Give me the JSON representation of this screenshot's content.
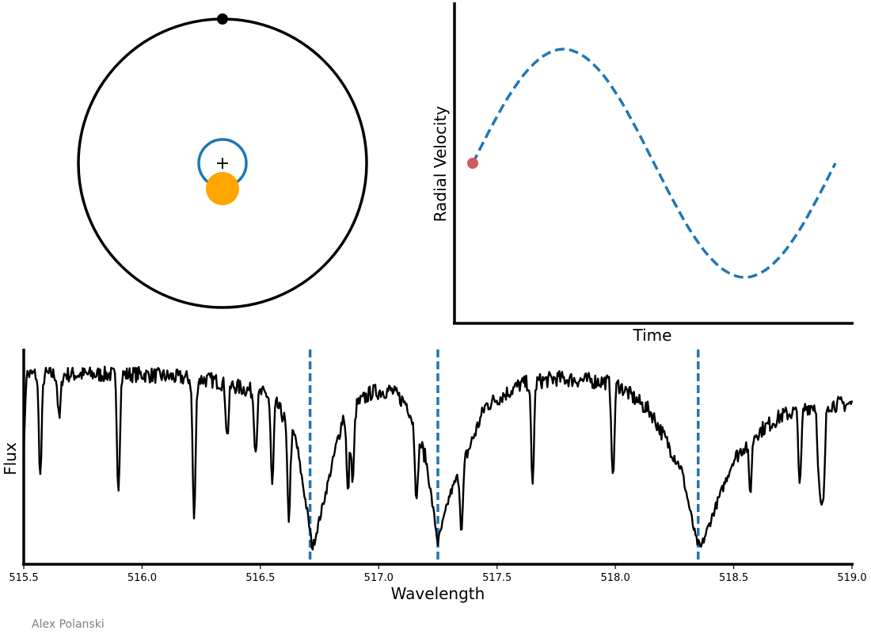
{
  "colors": {
    "orbit": "#000000",
    "star_orbit": "#1f77b4",
    "star": "#ffa500",
    "rv_curve": "#1f77b4",
    "rv_marker": "#cd5c5c",
    "spectrum": "#000000",
    "line_markers": "#1f77b4"
  },
  "credit": "Alex Polanski",
  "chart_data": [
    {
      "type": "diagram",
      "panel": "orbit",
      "elements": [
        "planet-orbit",
        "planet",
        "star-orbit",
        "barycenter",
        "star"
      ]
    },
    {
      "type": "line",
      "title": "",
      "xlabel": "Time",
      "ylabel": "Radial Velocity",
      "xticks": false,
      "yticks": false,
      "x": [
        0.0,
        0.05,
        0.1,
        0.15,
        0.2,
        0.25,
        0.3,
        0.35,
        0.4,
        0.45,
        0.5,
        0.55,
        0.6,
        0.65,
        0.7,
        0.75,
        0.8,
        0.85,
        0.9,
        0.95,
        1.0
      ],
      "series": [
        {
          "values": [
            0.0,
            0.31,
            0.59,
            0.81,
            0.95,
            1.0,
            0.95,
            0.81,
            0.59,
            0.31,
            0.0,
            -0.31,
            -0.59,
            -0.81,
            -0.95,
            -1.0,
            -0.95,
            -0.81,
            -0.59,
            -0.31,
            0.0
          ]
        }
      ],
      "current_point": {
        "x": 0.0,
        "y": 0.0
      }
    },
    {
      "type": "line",
      "title": "",
      "xlabel": "Wavelength",
      "ylabel": "Flux",
      "xlim": [
        515.5,
        519.0
      ],
      "xticks": [
        "515.5",
        "516.0",
        "516.5",
        "517.0",
        "517.5",
        "518.0",
        "518.5",
        "519.0"
      ],
      "continuum": [
        [
          515.5,
          0.93
        ],
        [
          516.0,
          0.93
        ],
        [
          516.3,
          0.9
        ],
        [
          516.55,
          0.82
        ],
        [
          516.65,
          0.6
        ],
        [
          516.7,
          0.22
        ],
        [
          516.72,
          0.05
        ],
        [
          516.76,
          0.25
        ],
        [
          516.85,
          0.72
        ],
        [
          516.97,
          0.84
        ],
        [
          517.05,
          0.85
        ],
        [
          517.12,
          0.78
        ],
        [
          517.2,
          0.5
        ],
        [
          517.25,
          0.08
        ],
        [
          517.3,
          0.32
        ],
        [
          517.38,
          0.55
        ],
        [
          517.45,
          0.77
        ],
        [
          517.6,
          0.88
        ],
        [
          517.75,
          0.91
        ],
        [
          518.0,
          0.89
        ],
        [
          518.15,
          0.74
        ],
        [
          518.28,
          0.45
        ],
        [
          518.34,
          0.1
        ],
        [
          518.36,
          0.05
        ],
        [
          518.42,
          0.25
        ],
        [
          518.5,
          0.5
        ],
        [
          518.58,
          0.62
        ],
        [
          518.7,
          0.72
        ],
        [
          518.85,
          0.78
        ],
        [
          519.0,
          0.78
        ]
      ],
      "absorption_lines": [
        {
          "center": 515.57,
          "depth": 0.55
        },
        {
          "center": 515.65,
          "depth": 0.25
        },
        {
          "center": 515.9,
          "depth": 0.62
        },
        {
          "center": 516.22,
          "depth": 0.78
        },
        {
          "center": 516.36,
          "depth": 0.3
        },
        {
          "center": 516.48,
          "depth": 0.35
        },
        {
          "center": 516.55,
          "depth": 0.55
        },
        {
          "center": 516.62,
          "depth": 0.7
        },
        {
          "center": 516.87,
          "depth": 0.55
        },
        {
          "center": 516.89,
          "depth": 0.5
        },
        {
          "center": 517.16,
          "depth": 0.55
        },
        {
          "center": 517.35,
          "depth": 0.7
        },
        {
          "center": 517.65,
          "depth": 0.58
        },
        {
          "center": 517.99,
          "depth": 0.55
        },
        {
          "center": 518.57,
          "depth": 0.45
        },
        {
          "center": 518.78,
          "depth": 0.5
        },
        {
          "center": 518.86,
          "depth": 0.42
        },
        {
          "center": 518.87,
          "depth": 0.58
        },
        {
          "center": 518.88,
          "depth": 0.55
        }
      ],
      "marked_lines": [
        516.71,
        517.25,
        518.35
      ]
    }
  ]
}
